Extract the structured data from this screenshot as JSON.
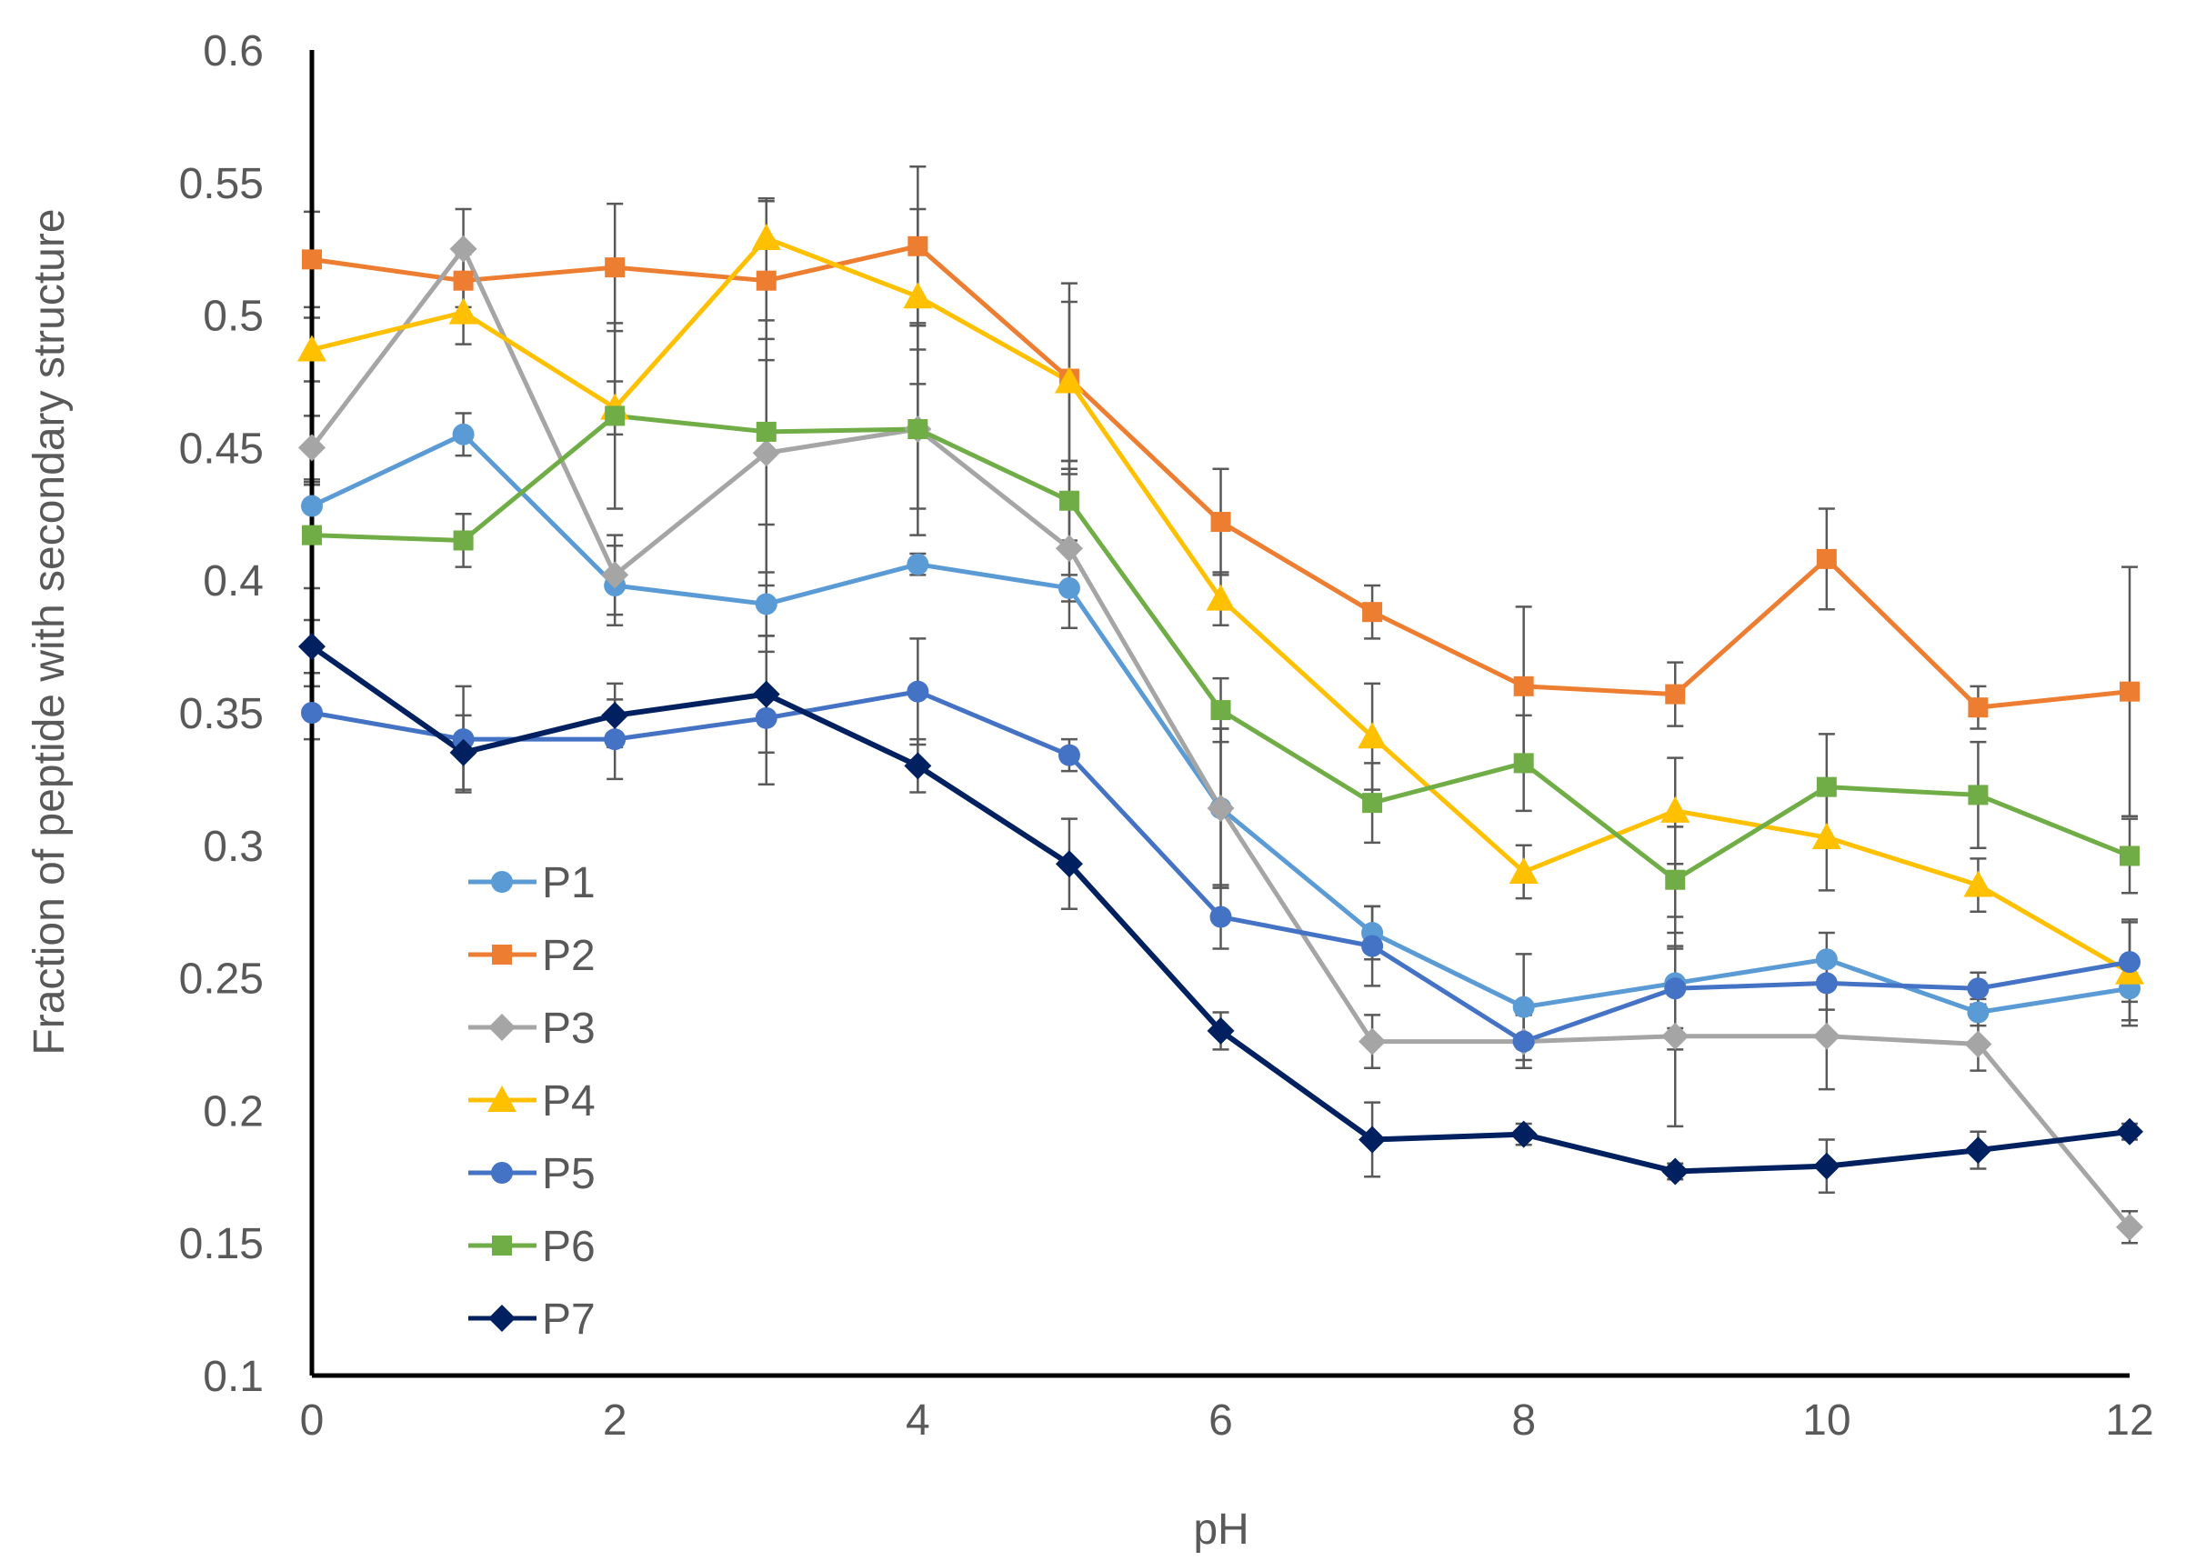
{
  "chart_data": {
    "type": "line",
    "title": "",
    "xlabel": "pH",
    "ylabel": "Fraction of peptide with secondary structure",
    "xlim": [
      0,
      12
    ],
    "ylim": [
      0.1,
      0.6
    ],
    "x_ticks": [
      "0",
      "2",
      "4",
      "6",
      "8",
      "10",
      "12"
    ],
    "y_ticks": [
      "0.1",
      "0.15",
      "0.2",
      "0.25",
      "0.3",
      "0.35",
      "0.4",
      "0.45",
      "0.5",
      "0.55",
      "0.6"
    ],
    "x": [
      0,
      1,
      2,
      3,
      4,
      5,
      6,
      7,
      8,
      9,
      10,
      11,
      12
    ],
    "legend_position": "left-middle",
    "series": [
      {
        "name": "P1",
        "color": "#5B9BD5",
        "marker": "circle",
        "values": [
          0.428,
          0.455,
          0.398,
          0.391,
          0.406,
          0.397,
          0.314,
          0.267,
          0.239,
          0.248,
          0.257,
          0.237,
          0.246
        ],
        "errors": [
          0.008,
          0.008,
          0.015,
          0.012,
          0.004,
          0.005,
          0.03,
          0.01,
          0.02,
          0.025,
          0.01,
          0.005,
          0.012
        ]
      },
      {
        "name": "P2",
        "color": "#ED7D31",
        "marker": "square",
        "values": [
          0.521,
          0.513,
          0.518,
          0.513,
          0.526,
          0.476,
          0.422,
          0.388,
          0.36,
          0.357,
          0.408,
          0.352,
          0.358
        ],
        "errors": [
          0.018,
          0.01,
          0.024,
          0.03,
          0.03,
          0.036,
          0.02,
          0.01,
          0.03,
          0.012,
          0.019,
          0.008,
          0.047
        ]
      },
      {
        "name": "P3",
        "color": "#A5A5A5",
        "marker": "diamond",
        "values": [
          0.45,
          0.525,
          0.402,
          0.448,
          0.457,
          0.412,
          0.314,
          0.226,
          0.226,
          0.228,
          0.228,
          0.225,
          0.156
        ],
        "errors": [
          0.012,
          0.015,
          0.015,
          0.05,
          0.03,
          0.03,
          0.03,
          0.01,
          0.01,
          0.034,
          0.02,
          0.01,
          0.006
        ]
      },
      {
        "name": "P4",
        "color": "#FFC000",
        "marker": "triangle",
        "values": [
          0.487,
          0.501,
          0.465,
          0.529,
          0.507,
          0.475,
          0.393,
          0.341,
          0.29,
          0.313,
          0.303,
          0.285,
          0.252
        ],
        "errors": [
          0.012,
          0.012,
          0.01,
          0.015,
          0.033,
          0.03,
          0.01,
          0.02,
          0.01,
          0.02,
          0.02,
          0.01,
          0.02
        ]
      },
      {
        "name": "P5",
        "color": "#4472C4",
        "marker": "circle",
        "values": [
          0.35,
          0.34,
          0.34,
          0.348,
          0.358,
          0.334,
          0.273,
          0.262,
          0.226,
          0.246,
          0.248,
          0.246,
          0.256
        ],
        "errors": [
          0.01,
          0.02,
          0.015,
          0.025,
          0.02,
          0.006,
          0.012,
          0.015,
          0.01,
          0.015,
          0.01,
          0.006,
          0.015
        ]
      },
      {
        "name": "P6",
        "color": "#70AD47",
        "marker": "square",
        "values": [
          0.417,
          0.415,
          0.462,
          0.456,
          0.457,
          0.43,
          0.351,
          0.316,
          0.331,
          0.287,
          0.322,
          0.319,
          0.296
        ],
        "errors": [
          0.02,
          0.01,
          0.035,
          0.035,
          0.04,
          0.015,
          0.012,
          0.015,
          0.018,
          0.02,
          0.02,
          0.02,
          0.014
        ]
      },
      {
        "name": "P7",
        "color": "#002060",
        "marker": "diamond",
        "values": [
          0.375,
          0.335,
          0.349,
          0.357,
          0.33,
          0.293,
          0.23,
          0.189,
          0.191,
          0.177,
          0.179,
          0.185,
          0.192
        ],
        "errors": [
          0.01,
          0.014,
          0.012,
          0.022,
          0.01,
          0.017,
          0.007,
          0.014,
          0.004,
          0.003,
          0.01,
          0.007,
          0.003
        ]
      }
    ]
  }
}
